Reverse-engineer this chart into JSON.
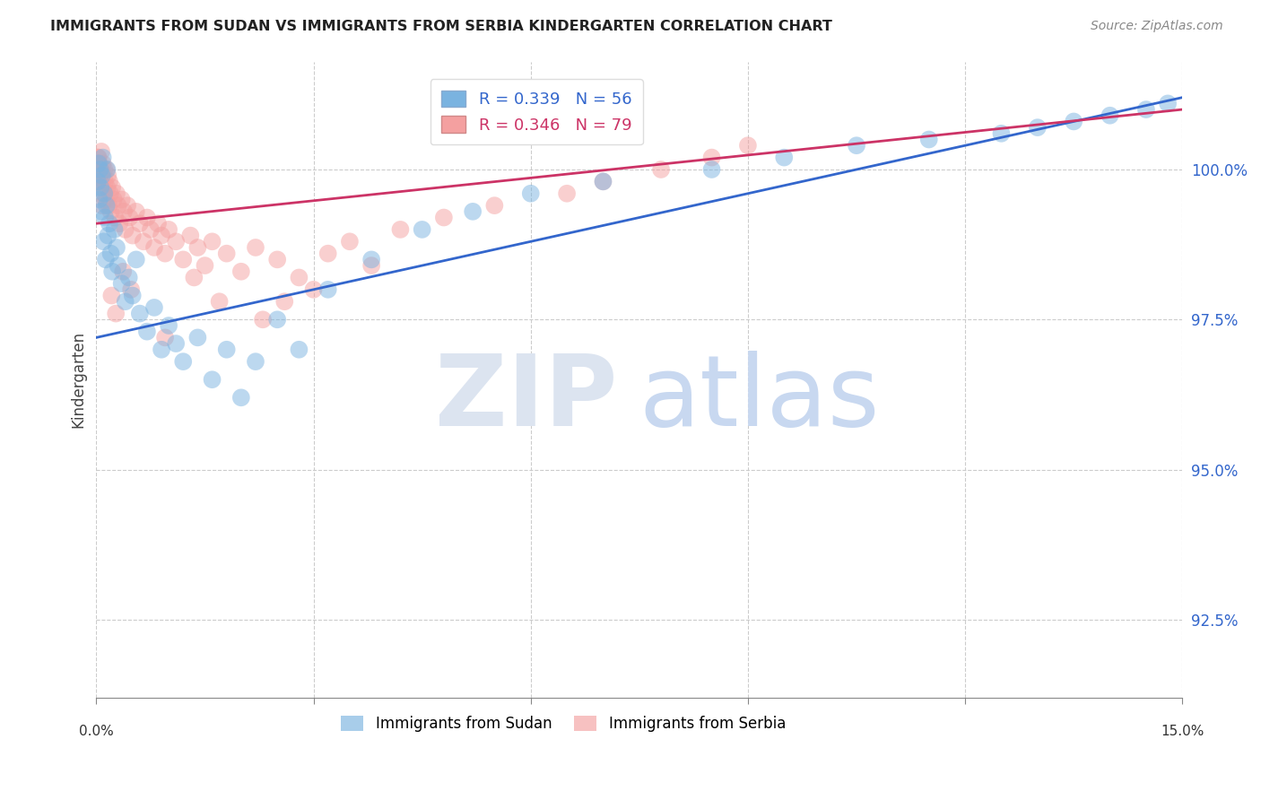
{
  "title": "IMMIGRANTS FROM SUDAN VS IMMIGRANTS FROM SERBIA KINDERGARTEN CORRELATION CHART",
  "source": "Source: ZipAtlas.com",
  "ylabel": "Kindergarten",
  "ytick_labels": [
    "92.5%",
    "95.0%",
    "97.5%",
    "100.0%"
  ],
  "ytick_values": [
    92.5,
    95.0,
    97.5,
    100.0
  ],
  "xmin": 0.0,
  "xmax": 15.0,
  "ymin": 91.2,
  "ymax": 101.8,
  "legend1_label": "R = 0.339   N = 56",
  "legend2_label": "R = 0.346   N = 79",
  "legend_color1": "#7ab3e0",
  "legend_color2": "#f4a0a0",
  "sudan_color": "#7ab3e0",
  "serbia_color": "#f4a0a0",
  "line_sudan_color": "#3366cc",
  "line_serbia_color": "#cc3366",
  "sudan_scatter_x": [
    0.02,
    0.03,
    0.04,
    0.05,
    0.06,
    0.07,
    0.08,
    0.09,
    0.1,
    0.11,
    0.12,
    0.13,
    0.14,
    0.15,
    0.16,
    0.18,
    0.2,
    0.22,
    0.25,
    0.28,
    0.3,
    0.35,
    0.4,
    0.45,
    0.5,
    0.55,
    0.6,
    0.7,
    0.8,
    0.9,
    1.0,
    1.1,
    1.2,
    1.4,
    1.6,
    1.8,
    2.0,
    2.2,
    2.5,
    2.8,
    3.2,
    3.8,
    4.5,
    5.2,
    6.0,
    7.0,
    8.5,
    9.5,
    10.5,
    11.5,
    12.5,
    13.0,
    13.5,
    14.0,
    14.5,
    14.8
  ],
  "sudan_scatter_y": [
    99.8,
    100.1,
    99.5,
    100.0,
    99.7,
    99.3,
    99.9,
    100.2,
    98.8,
    99.6,
    99.2,
    98.5,
    99.4,
    100.0,
    98.9,
    99.1,
    98.6,
    98.3,
    99.0,
    98.7,
    98.4,
    98.1,
    97.8,
    98.2,
    97.9,
    98.5,
    97.6,
    97.3,
    97.7,
    97.0,
    97.4,
    97.1,
    96.8,
    97.2,
    96.5,
    97.0,
    96.2,
    96.8,
    97.5,
    97.0,
    98.0,
    98.5,
    99.0,
    99.3,
    99.6,
    99.8,
    100.0,
    100.2,
    100.4,
    100.5,
    100.6,
    100.7,
    100.8,
    100.9,
    101.0,
    101.1
  ],
  "serbia_scatter_x": [
    0.01,
    0.02,
    0.03,
    0.04,
    0.05,
    0.06,
    0.07,
    0.08,
    0.09,
    0.1,
    0.11,
    0.12,
    0.13,
    0.14,
    0.15,
    0.16,
    0.17,
    0.18,
    0.19,
    0.2,
    0.22,
    0.24,
    0.26,
    0.28,
    0.3,
    0.32,
    0.35,
    0.38,
    0.4,
    0.43,
    0.46,
    0.5,
    0.55,
    0.6,
    0.65,
    0.7,
    0.75,
    0.8,
    0.85,
    0.9,
    0.95,
    1.0,
    1.1,
    1.2,
    1.3,
    1.4,
    1.5,
    1.6,
    1.8,
    2.0,
    2.2,
    2.5,
    2.8,
    3.2,
    3.5,
    3.8,
    4.2,
    4.8,
    5.5,
    6.5,
    7.0,
    7.8,
    8.5,
    9.0,
    3.0,
    2.6,
    2.3,
    1.7,
    1.35,
    0.95,
    0.48,
    0.37,
    0.27,
    0.21,
    0.08,
    0.06,
    0.04,
    0.03,
    0.02
  ],
  "serbia_scatter_y": [
    100.0,
    99.8,
    100.2,
    100.1,
    99.9,
    100.0,
    100.3,
    99.7,
    100.1,
    99.6,
    100.0,
    99.8,
    99.5,
    100.0,
    99.7,
    99.9,
    99.4,
    99.8,
    99.6,
    99.3,
    99.7,
    99.5,
    99.2,
    99.6,
    99.4,
    99.1,
    99.5,
    99.3,
    99.0,
    99.4,
    99.2,
    98.9,
    99.3,
    99.1,
    98.8,
    99.2,
    99.0,
    98.7,
    99.1,
    98.9,
    98.6,
    99.0,
    98.8,
    98.5,
    98.9,
    98.7,
    98.4,
    98.8,
    98.6,
    98.3,
    98.7,
    98.5,
    98.2,
    98.6,
    98.8,
    98.4,
    99.0,
    99.2,
    99.4,
    99.6,
    99.8,
    100.0,
    100.2,
    100.4,
    98.0,
    97.8,
    97.5,
    97.8,
    98.2,
    97.2,
    98.0,
    98.3,
    97.6,
    97.9,
    99.4,
    99.8,
    100.0,
    100.1,
    100.2
  ],
  "sudan_line_x": [
    0.0,
    15.0
  ],
  "sudan_line_y": [
    97.2,
    101.2
  ],
  "serbia_line_x": [
    0.0,
    15.0
  ],
  "serbia_line_y": [
    99.1,
    101.0
  ]
}
